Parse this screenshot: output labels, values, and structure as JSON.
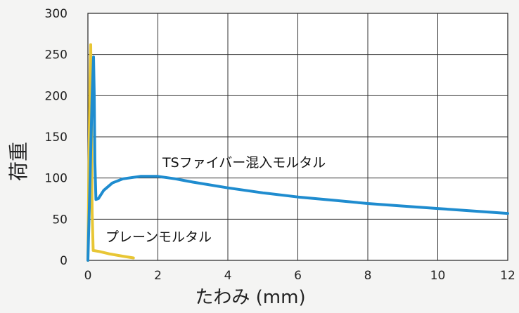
{
  "chart_data": {
    "type": "line",
    "xlabel": "たわみ (mm)",
    "ylabel": "荷重",
    "xlim": [
      0,
      12
    ],
    "ylim": [
      0,
      300
    ],
    "xticks": [
      0,
      2,
      4,
      6,
      8,
      10,
      12
    ],
    "yticks": [
      0,
      50,
      100,
      150,
      200,
      250,
      300
    ],
    "grid": true,
    "series": [
      {
        "name": "TSファイバー混入モルタル",
        "color": "#1f8ccf",
        "x": [
          0.0,
          0.05,
          0.12,
          0.16,
          0.18,
          0.2,
          0.23,
          0.3,
          0.45,
          0.7,
          1.0,
          1.5,
          2.0,
          2.5,
          3.0,
          4.0,
          5.0,
          6.0,
          7.0,
          8.0,
          9.0,
          10.0,
          11.0,
          12.0
        ],
        "y": [
          0,
          80,
          200,
          247,
          200,
          120,
          74,
          75,
          85,
          94,
          99,
          102,
          102,
          99,
          95,
          88,
          82,
          77,
          73,
          69,
          66,
          63,
          60,
          57
        ]
      },
      {
        "name": "プレーンモルタル",
        "color": "#e8c635",
        "x": [
          0.0,
          0.03,
          0.06,
          0.08,
          0.1,
          0.12,
          0.15,
          0.3,
          0.6,
          1.0,
          1.3
        ],
        "y": [
          0,
          120,
          220,
          262,
          180,
          60,
          12,
          11,
          8,
          5,
          3
        ]
      }
    ]
  }
}
